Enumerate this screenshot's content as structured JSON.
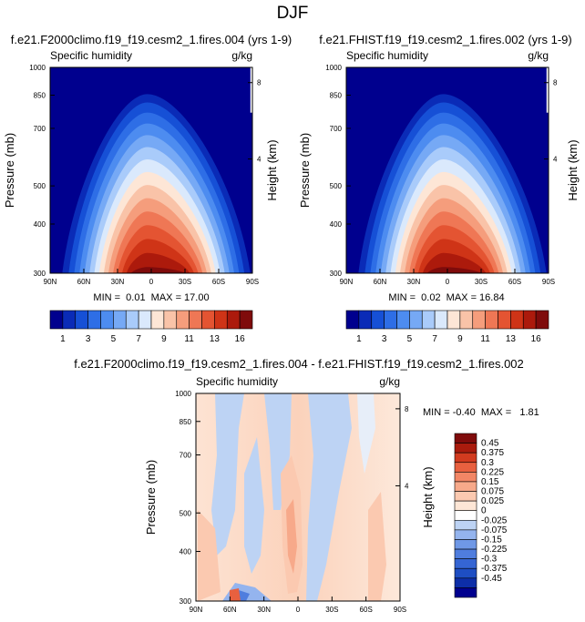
{
  "figure_title": "DJF",
  "colors": {
    "abs_levels": [
      "#00008e",
      "#0a2bb7",
      "#1650d6",
      "#2e6ee6",
      "#4d8cf0",
      "#76a9f5",
      "#a9cbfa",
      "#dae9fc",
      "#fde6d6",
      "#f9c3a8",
      "#f59d7c",
      "#ef7755",
      "#e45432",
      "#cf3417",
      "#ac1a0c",
      "#7f0b0b"
    ],
    "diff_levels": [
      "#00008e",
      "#0d2ea8",
      "#1e4ec3",
      "#3565d3",
      "#4f7dde",
      "#6f98e6",
      "#94b4ee",
      "#bdd3f4",
      "#ffffff",
      "#fde6d6",
      "#fbc9b0",
      "#f7a98a",
      "#f28665",
      "#e8603f",
      "#d23b1f",
      "#aa1b0d",
      "#7f0b0b"
    ]
  },
  "chart_data": [
    {
      "id": "left",
      "type": "heatmap",
      "title": "f.e21.F2000climo.f19_f19.cesm2_1.fires.004 (yrs 1-9)",
      "left_label": "Specific humidity",
      "right_label": "g/kg",
      "ylabel": "Pressure (mb)",
      "y2label": "Height (km)",
      "x_ticks": [
        "90N",
        "60N",
        "30N",
        "0",
        "30S",
        "60S",
        "90S"
      ],
      "y_ticks": [
        "300",
        "400",
        "500",
        "700",
        "850",
        "1000"
      ],
      "y2_ticks": [
        "8",
        "4"
      ],
      "ylim": [
        1000,
        300
      ],
      "y_scale": "log",
      "min": "0.01",
      "max": "17.00",
      "stats_text": "MIN =  0.01  MAX = 17.00",
      "levels": [
        1,
        2,
        3,
        4,
        5,
        6,
        7,
        8,
        9,
        10,
        11,
        12,
        13,
        14,
        16
      ],
      "colorbar_labels": [
        "1",
        "3",
        "5",
        "7",
        "9",
        "11",
        "13",
        "16"
      ]
    },
    {
      "id": "right",
      "type": "heatmap",
      "title": "f.e21.FHIST.f19_f19.cesm2_1.fires.002 (yrs 1-9)",
      "left_label": "Specific humidity",
      "right_label": "g/kg",
      "ylabel": "Pressure (mb)",
      "y2label": "Height (km)",
      "x_ticks": [
        "90N",
        "60N",
        "30N",
        "0",
        "30S",
        "60S",
        "90S"
      ],
      "y_ticks": [
        "300",
        "400",
        "500",
        "700",
        "850",
        "1000"
      ],
      "y2_ticks": [
        "8",
        "4"
      ],
      "ylim": [
        1000,
        300
      ],
      "y_scale": "log",
      "min": "0.02",
      "max": "16.84",
      "stats_text": "MIN =  0.02  MAX = 16.84",
      "levels": [
        1,
        2,
        3,
        4,
        5,
        6,
        7,
        8,
        9,
        10,
        11,
        12,
        13,
        14,
        16
      ],
      "colorbar_labels": [
        "1",
        "3",
        "5",
        "7",
        "9",
        "11",
        "13",
        "16"
      ]
    },
    {
      "id": "diff",
      "type": "heatmap",
      "title": "f.e21.F2000climo.f19_f19.cesm2_1.fires.004 - f.e21.FHIST.f19_f19.cesm2_1.fires.002",
      "left_label": "Specific humidity",
      "right_label": "g/kg",
      "ylabel": "Pressure (mb)",
      "y2label": "Height (km)",
      "x_ticks": [
        "90N",
        "60N",
        "30N",
        "0",
        "30S",
        "60S",
        "90S"
      ],
      "y_ticks": [
        "300",
        "400",
        "500",
        "700",
        "850",
        "1000"
      ],
      "y2_ticks": [
        "8",
        "4"
      ],
      "ylim": [
        1000,
        300
      ],
      "y_scale": "log",
      "min": "-0.40",
      "max": "1.81",
      "stats_text": "MIN = -0.40  MAX =   1.81",
      "colorbar_labels": [
        "0.45",
        "0.375",
        "0.3",
        "0.225",
        "0.15",
        "0.075",
        "0.025",
        "0",
        "-0.025",
        "-0.075",
        "-0.15",
        "-0.225",
        "-0.3",
        "-0.375",
        "-0.45"
      ]
    }
  ]
}
